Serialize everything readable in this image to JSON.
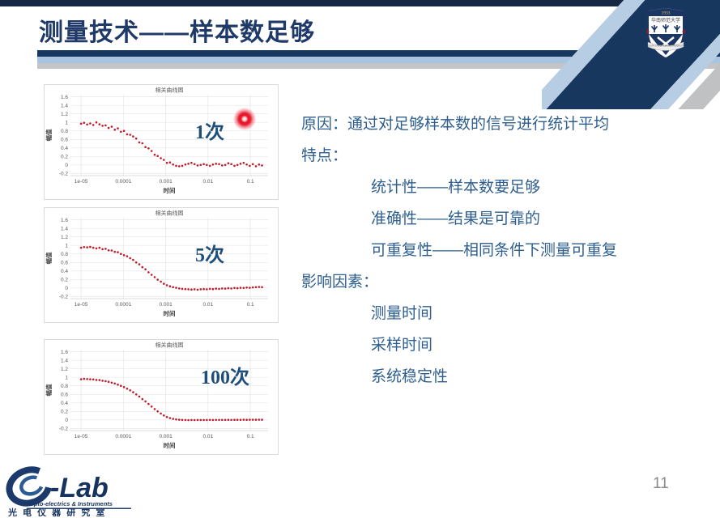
{
  "header": {
    "title": "测量技术——样本数足够"
  },
  "crest": {
    "year": "1933",
    "name_zh": "华南师范大学",
    "name_en": "SOUTH CHINA NORMAL UNIVERSITY"
  },
  "content": {
    "lines": [
      {
        "text": "原因：通过对足够样本数的信号进行统计平均",
        "indent": false
      },
      {
        "text": "特点：",
        "indent": false
      },
      {
        "text": "统计性——样本数要足够",
        "indent": true
      },
      {
        "text": "准确性——结果是可靠的",
        "indent": true
      },
      {
        "text": "可重复性——相同条件下测量可重复",
        "indent": true
      },
      {
        "text": "影响因素：",
        "indent": false
      },
      {
        "text": "测量时间",
        "indent": true
      },
      {
        "text": "采样时间",
        "indent": true
      },
      {
        "text": "系统稳定性",
        "indent": true
      }
    ]
  },
  "footer": {
    "lab_wordmark": "-Lab",
    "lab_sub": "Opto-electrics & Instruments",
    "lab_cn": "光 电 仪 器 研 究 室",
    "page_number": "11"
  },
  "chart_data": {
    "type": "scatter",
    "shared": {
      "title": "相关曲线图",
      "xlabel": "时间",
      "ylabel": "幅值",
      "x_scale": "log",
      "grid": true,
      "point_color": "#C11B2B",
      "xlim_log10": [
        -5.25,
        -0.58
      ],
      "ylim": [
        -0.25,
        1.65
      ],
      "x_ticks": [
        {
          "log10": -5,
          "label": "1e-05"
        },
        {
          "log10": -4,
          "label": "0.0001"
        },
        {
          "log10": -3,
          "label": "0.001"
        },
        {
          "log10": -2,
          "label": "0.01"
        },
        {
          "log10": -1,
          "label": "0.1"
        }
      ],
      "y_ticks": [
        {
          "v": -0.2,
          "label": "-0.2"
        },
        {
          "v": 0,
          "label": "0"
        },
        {
          "v": 0.2,
          "label": "0.2"
        },
        {
          "v": 0.4,
          "label": "0.4"
        },
        {
          "v": 0.6,
          "label": "0.6"
        },
        {
          "v": 0.8,
          "label": "0.8"
        },
        {
          "v": 1,
          "label": "1"
        },
        {
          "v": 1.2,
          "label": "1.2"
        },
        {
          "v": 1.4,
          "label": "1.4"
        },
        {
          "v": 1.6,
          "label": "1.6"
        }
      ],
      "x_log10": [
        -5.0,
        -4.928,
        -4.855,
        -4.783,
        -4.71,
        -4.638,
        -4.565,
        -4.493,
        -4.42,
        -4.348,
        -4.275,
        -4.203,
        -4.13,
        -4.058,
        -3.985,
        -3.913,
        -3.84,
        -3.768,
        -3.695,
        -3.623,
        -3.55,
        -3.478,
        -3.405,
        -3.333,
        -3.26,
        -3.188,
        -3.115,
        -3.043,
        -2.97,
        -2.898,
        -2.825,
        -2.753,
        -2.68,
        -2.608,
        -2.535,
        -2.463,
        -2.39,
        -2.318,
        -2.245,
        -2.173,
        -2.1,
        -2.028,
        -1.955,
        -1.883,
        -1.81,
        -1.738,
        -1.665,
        -1.593,
        -1.52,
        -1.448,
        -1.375,
        -1.303,
        -1.23,
        -1.158,
        -1.085,
        -1.013,
        -0.94,
        -0.868,
        -0.795,
        -0.723
      ]
    },
    "charts": [
      {
        "annotation": "1次",
        "y": [
          0.97,
          0.99,
          0.95,
          0.975,
          0.94,
          1.0,
          0.955,
          0.92,
          0.93,
          0.87,
          0.9,
          0.83,
          0.86,
          0.78,
          0.8,
          0.72,
          0.71,
          0.67,
          0.62,
          0.53,
          0.51,
          0.42,
          0.39,
          0.33,
          0.24,
          0.21,
          0.16,
          0.12,
          0.05,
          0.06,
          0.01,
          -0.02,
          -0.03,
          -0.02,
          0.01,
          0.03,
          0.05,
          0.02,
          -0.01,
          0.0,
          0.02,
          0.0,
          -0.02,
          0.01,
          0.03,
          0.02,
          -0.01,
          0.0,
          0.04,
          0.02,
          -0.02,
          0.0,
          0.03,
          0.05,
          0.01,
          -0.02,
          0.02,
          -0.03,
          0.01,
          -0.01
        ]
      },
      {
        "annotation": "5次",
        "y": [
          0.945,
          0.96,
          0.955,
          0.965,
          0.945,
          0.93,
          0.945,
          0.91,
          0.92,
          0.885,
          0.88,
          0.85,
          0.84,
          0.8,
          0.77,
          0.745,
          0.7,
          0.66,
          0.6,
          0.555,
          0.49,
          0.44,
          0.37,
          0.31,
          0.255,
          0.195,
          0.15,
          0.1,
          0.065,
          0.04,
          0.02,
          0.005,
          -0.01,
          -0.02,
          -0.025,
          -0.03,
          -0.035,
          -0.03,
          -0.04,
          -0.03,
          -0.025,
          -0.03,
          -0.02,
          -0.025,
          -0.015,
          -0.02,
          -0.01,
          -0.015,
          -0.005,
          -0.01,
          0.0,
          -0.005,
          0.005,
          0.0,
          0.01,
          0.005,
          0.015,
          0.02,
          0.025,
          0.02
        ]
      },
      {
        "annotation": "100次",
        "y": [
          0.955,
          0.965,
          0.96,
          0.955,
          0.95,
          0.94,
          0.935,
          0.92,
          0.91,
          0.895,
          0.875,
          0.855,
          0.83,
          0.8,
          0.77,
          0.735,
          0.695,
          0.65,
          0.6,
          0.55,
          0.49,
          0.435,
          0.375,
          0.315,
          0.255,
          0.2,
          0.15,
          0.105,
          0.07,
          0.045,
          0.025,
          0.012,
          0.004,
          0.0,
          -0.002,
          -0.003,
          -0.002,
          -0.003,
          -0.002,
          -0.002,
          -0.001,
          -0.002,
          0.0,
          -0.001,
          0.001,
          0.0,
          0.001,
          0.0,
          0.002,
          0.001,
          0.003,
          0.002,
          0.003,
          0.004,
          0.003,
          0.005,
          0.004,
          0.005,
          0.006,
          0.005
        ]
      }
    ]
  }
}
